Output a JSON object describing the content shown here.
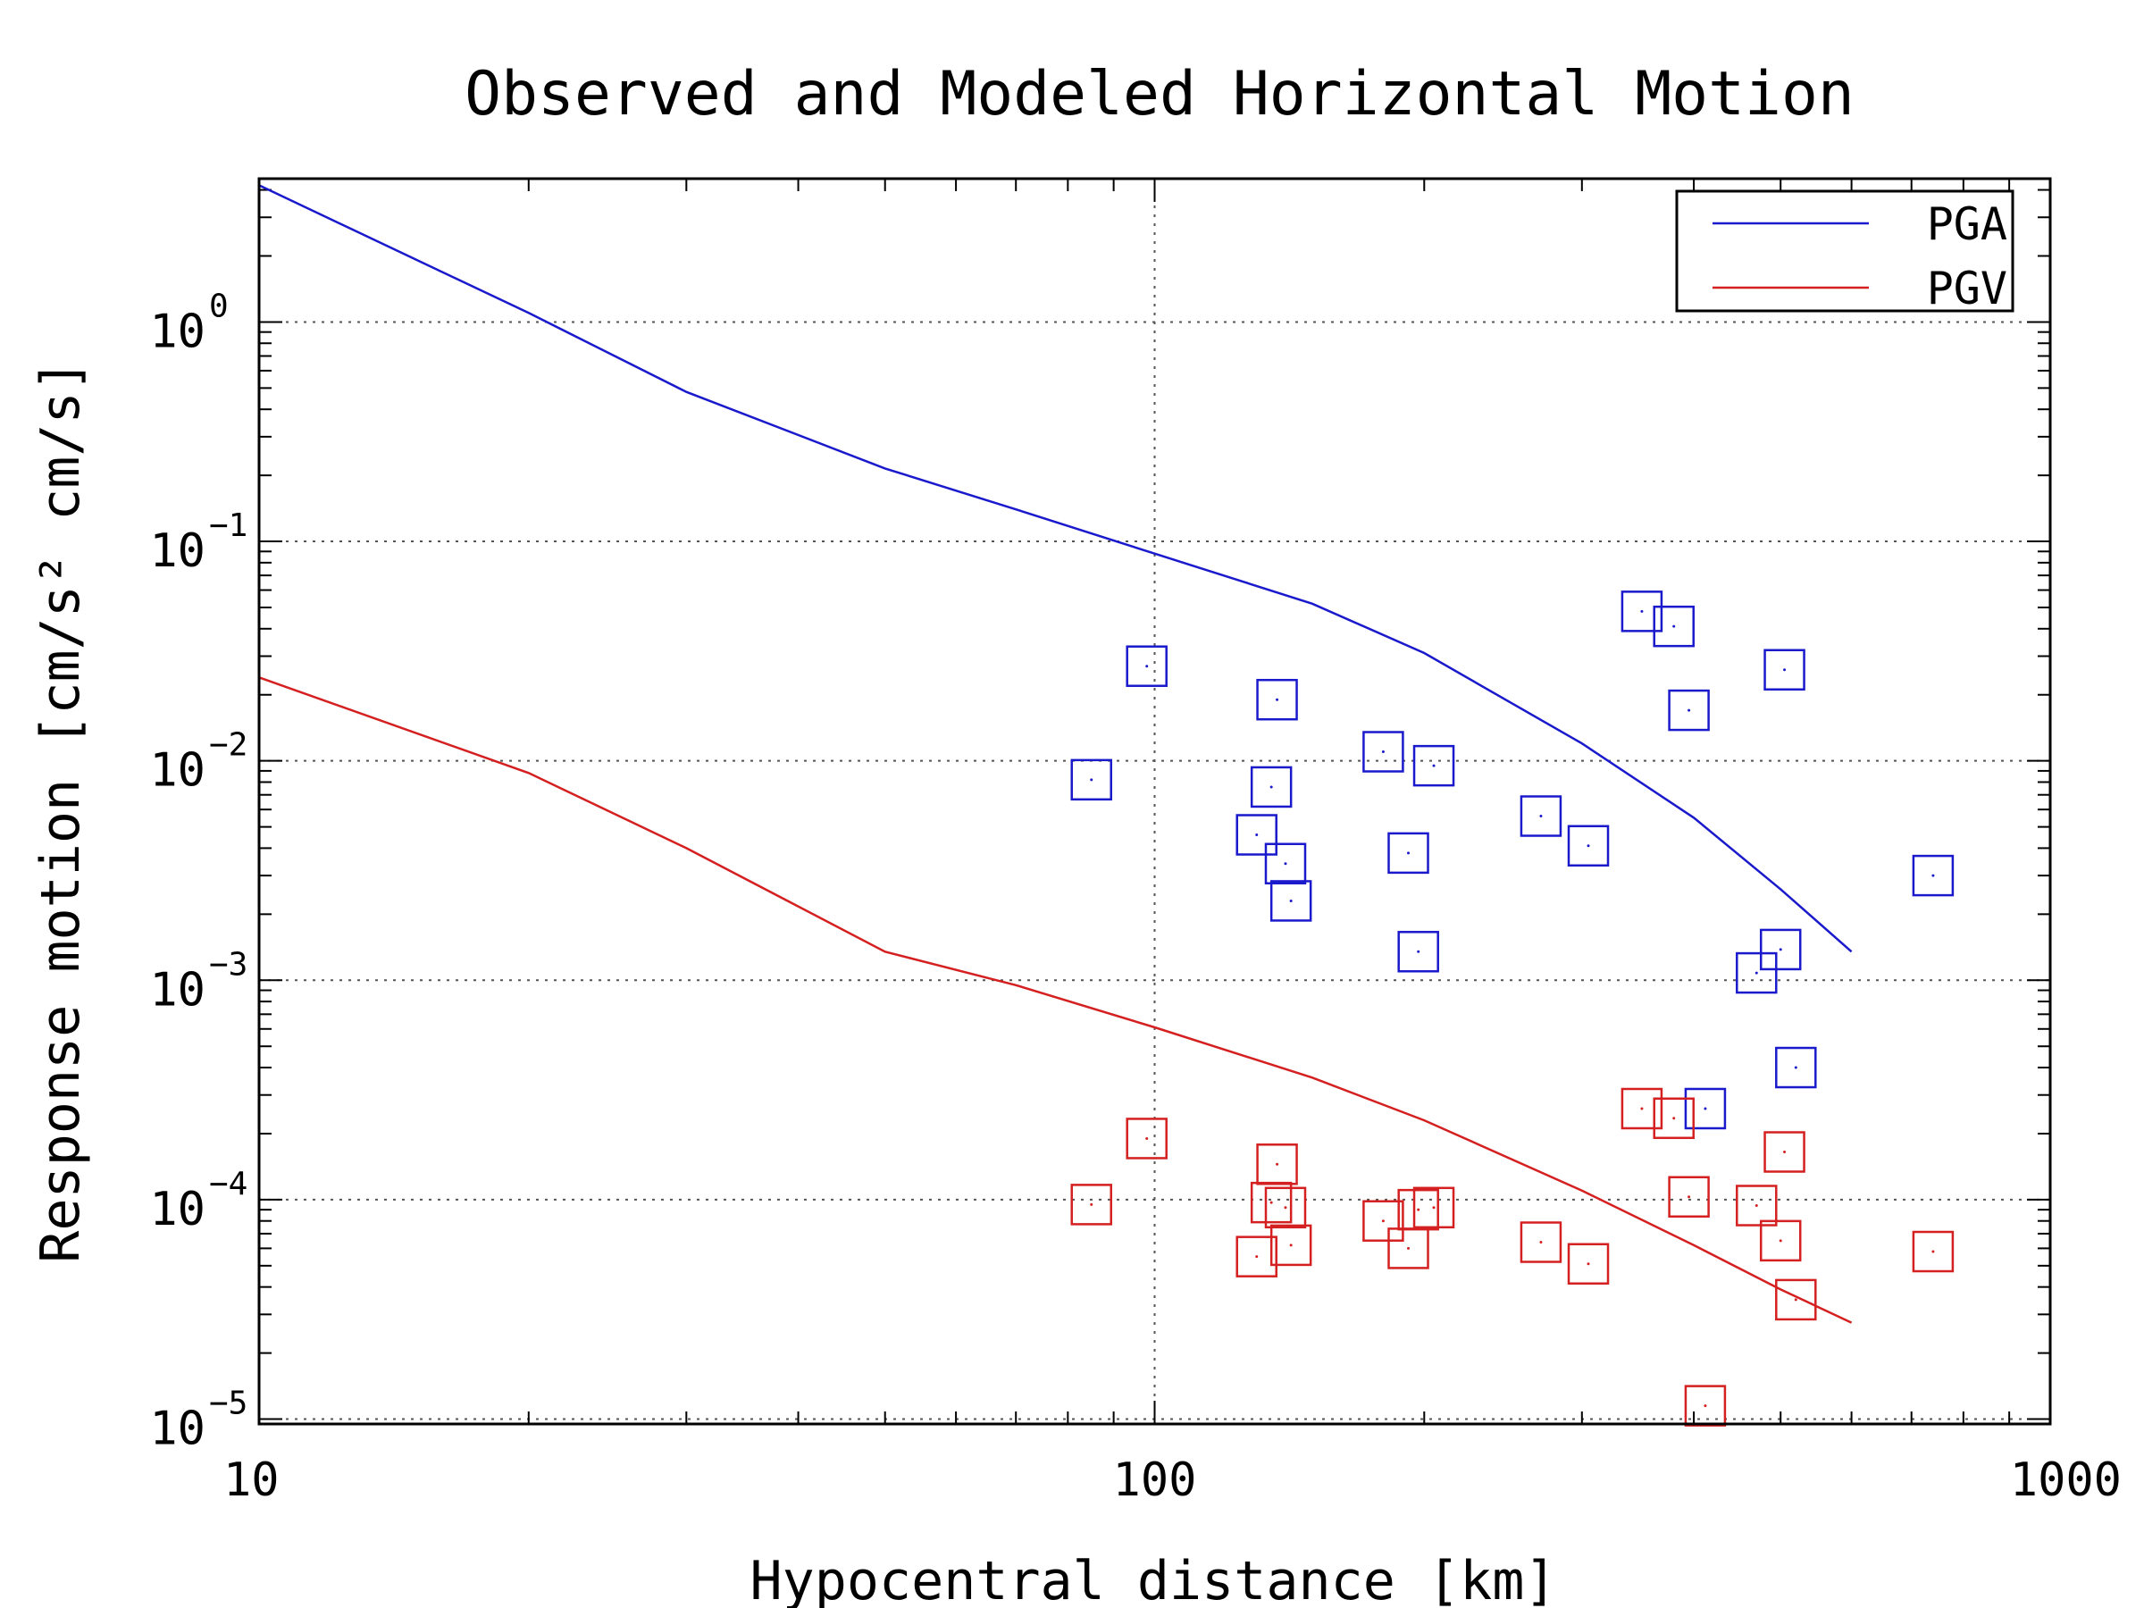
{
  "chart_data": {
    "type": "scatter",
    "title": "Observed and Modeled Horizontal Motion",
    "xlabel": "Hypocentral distance [km]",
    "ylabel": "Response motion [cm/s²  cm/s]",
    "x_scale": "log",
    "y_scale": "log",
    "xlim": [
      10,
      1000
    ],
    "ylim": [
      9.5e-06,
      4.5
    ],
    "x_ticks": [
      {
        "value": 10,
        "label": "10"
      },
      {
        "value": 100,
        "label": "100"
      },
      {
        "value": 1000,
        "label": "1000"
      }
    ],
    "y_ticks": [
      {
        "value": 1,
        "base": "10",
        "exp": "0"
      },
      {
        "value": 0.1,
        "base": "10",
        "exp": "−1"
      },
      {
        "value": 0.01,
        "base": "10",
        "exp": "−2"
      },
      {
        "value": 0.001,
        "base": "10",
        "exp": "−3"
      },
      {
        "value": 0.0001,
        "base": "10",
        "exp": "−4"
      },
      {
        "value": 1e-05,
        "base": "10",
        "exp": "−5"
      }
    ],
    "grid": "dotted at major ticks",
    "legend": {
      "position": "top-right",
      "entries": [
        "PGA",
        "PGV"
      ]
    },
    "colors": {
      "PGA": "#1a1acc",
      "PGV": "#d42020"
    },
    "series": [
      {
        "name": "PGA",
        "kind": "line",
        "x": [
          10,
          20,
          30,
          50,
          70,
          100,
          150,
          200,
          300,
          400,
          500,
          600
        ],
        "y": [
          4.2,
          1.1,
          0.48,
          0.215,
          0.14,
          0.088,
          0.052,
          0.031,
          0.012,
          0.0055,
          0.0026,
          0.00135
        ]
      },
      {
        "name": "PGV",
        "kind": "line",
        "x": [
          10,
          20,
          30,
          50,
          70,
          100,
          150,
          200,
          300,
          400,
          500,
          600
        ],
        "y": [
          0.024,
          0.0088,
          0.004,
          0.00135,
          0.00095,
          0.00061,
          0.00036,
          0.00023,
          0.00011,
          6.2e-05,
          3.9e-05,
          2.75e-05
        ]
      },
      {
        "name": "PGA",
        "kind": "markers",
        "x": [
          85,
          98,
          130,
          135,
          137,
          140,
          142,
          180,
          192,
          197,
          205,
          270,
          305,
          350,
          380,
          395,
          470,
          500,
          505,
          520,
          740,
          412
        ],
        "y": [
          0.0082,
          0.027,
          0.0046,
          0.0076,
          0.019,
          0.0034,
          0.0023,
          0.011,
          0.0038,
          0.00135,
          0.0095,
          0.0056,
          0.0041,
          0.048,
          0.041,
          0.017,
          0.00108,
          0.00138,
          0.026,
          0.0004,
          0.003,
          0.00026
        ]
      },
      {
        "name": "PGV",
        "kind": "markers",
        "x": [
          85,
          98,
          130,
          135,
          137,
          140,
          142,
          180,
          192,
          197,
          205,
          270,
          305,
          350,
          380,
          395,
          470,
          500,
          505,
          520,
          740,
          412
        ],
        "y": [
          9.5e-05,
          0.00019,
          5.5e-05,
          9.7e-05,
          0.000145,
          9.2e-05,
          6.2e-05,
          8e-05,
          6e-05,
          9e-05,
          9.2e-05,
          6.4e-05,
          5.1e-05,
          0.00026,
          0.000235,
          0.000103,
          9.4e-05,
          6.5e-05,
          0.000165,
          3.5e-05,
          5.8e-05,
          1.15e-05
        ]
      }
    ]
  }
}
